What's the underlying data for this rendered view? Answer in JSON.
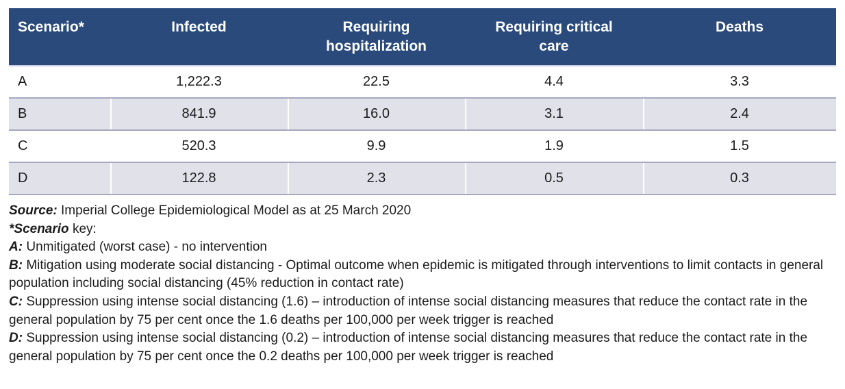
{
  "colors": {
    "header_bg": "#2a4a7c",
    "header_text": "#ffffff",
    "row_alt_bg": "#e1e1ea",
    "row_separator": "#a6a8c0",
    "header_underline": "#c9cbe0",
    "body_text": "#1b1b1b"
  },
  "table": {
    "columns": [
      "Scenario*",
      "Infected",
      "Requiring hospitalization",
      "Requiring critical care",
      "Deaths"
    ],
    "rows": [
      {
        "scenario": "A",
        "infected": "1,222.3",
        "hospitalization": "22.5",
        "critical_care": "4.4",
        "deaths": "3.3"
      },
      {
        "scenario": "B",
        "infected": "841.9",
        "hospitalization": "16.0",
        "critical_care": "3.1",
        "deaths": "2.4"
      },
      {
        "scenario": "C",
        "infected": "520.3",
        "hospitalization": "9.9",
        "critical_care": "1.9",
        "deaths": "1.5"
      },
      {
        "scenario": "D",
        "infected": "122.8",
        "hospitalization": "2.3",
        "critical_care": "0.5",
        "deaths": "0.3"
      }
    ]
  },
  "notes": [
    {
      "prefix": "Source:",
      "text": "Imperial College Epidemiological Model as at 25 March 2020"
    },
    {
      "prefix": "*Scenario",
      "text": "key:"
    },
    {
      "prefix": "A:",
      "text": "Unmitigated (worst case) - no intervention"
    },
    {
      "prefix": "B:",
      "text": "Mitigation using moderate social distancing - Optimal outcome when epidemic is mitigated through interventions to limit contacts in general population including social distancing (45% reduction in contact rate)"
    },
    {
      "prefix": "C:",
      "text": "Suppression using intense social distancing (1.6) – introduction of intense social distancing measures that reduce the contact rate in the general population by 75 per cent once the 1.6 deaths per 100,000 per week trigger is reached"
    },
    {
      "prefix": "D:",
      "text": "Suppression using intense social distancing (0.2) – introduction of intense social distancing measures that reduce the contact rate in the general population by 75 per cent once the 0.2 deaths per 100,000 per week trigger is reached"
    }
  ],
  "chart_data": {
    "type": "table",
    "columns": [
      "Scenario*",
      "Infected",
      "Requiring hospitalization",
      "Requiring critical care",
      "Deaths"
    ],
    "rows": [
      [
        "A",
        1222.3,
        22.5,
        4.4,
        3.3
      ],
      [
        "B",
        841.9,
        16.0,
        3.1,
        2.4
      ],
      [
        "C",
        520.3,
        9.9,
        1.9,
        1.5
      ],
      [
        "D",
        122.8,
        2.3,
        0.5,
        0.3
      ]
    ],
    "source": "Imperial College Epidemiological Model as at 25 March 2020",
    "scenario_key": {
      "A": "Unmitigated (worst case) - no intervention",
      "B": "Mitigation using moderate social distancing - Optimal outcome when epidemic is mitigated through interventions to limit contacts in general population including social distancing (45% reduction in contact rate)",
      "C": "Suppression using intense social distancing (1.6) – introduction of intense social distancing measures that reduce the contact rate in the general population by 75 per cent once the 1.6 deaths per 100,000 per week trigger is reached",
      "D": "Suppression using intense social distancing (0.2) – introduction of intense social distancing measures that reduce the contact rate in the general population by 75 per cent once the 0.2 deaths per 100,000 per week trigger is reached"
    }
  }
}
